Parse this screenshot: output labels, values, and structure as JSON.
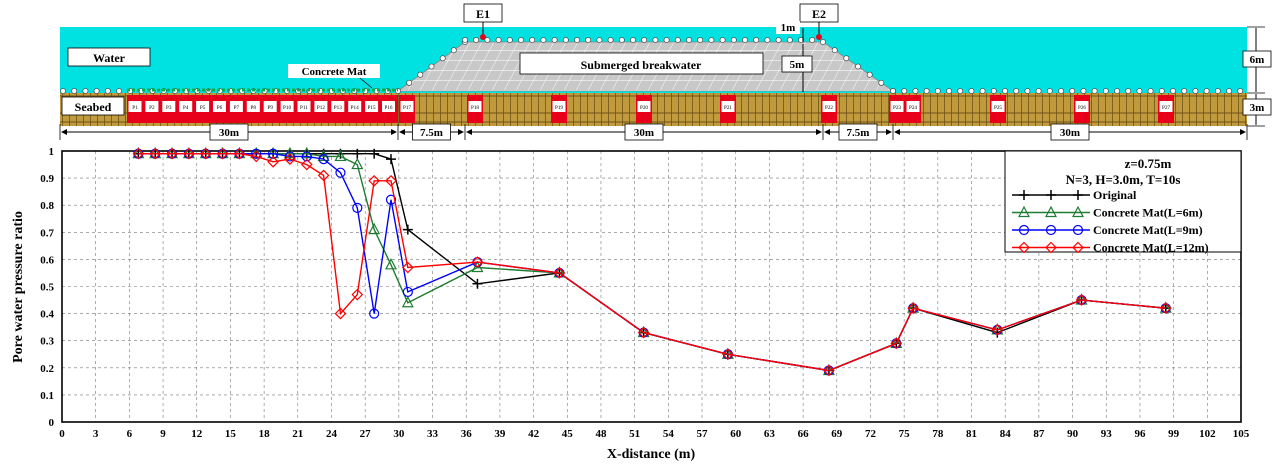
{
  "diagram": {
    "water_label": "Water",
    "concrete_mat_label": "Concrete Mat",
    "breakwater_label": "Submerged breakwater",
    "seabed_label": "Seabed",
    "e1_label": "E1",
    "e2_label": "E2",
    "dim_1m": "1m",
    "dim_5m": "5m",
    "dim_6m": "6m",
    "dim_3m": "3m",
    "segments": [
      "30m",
      "7.5m",
      "30m",
      "7.5m",
      "30m"
    ],
    "probes": [
      "P1",
      "P2",
      "P3",
      "P4",
      "P5",
      "P6",
      "P7",
      "P8",
      "P9",
      "P10",
      "P11",
      "P12",
      "P13",
      "P14",
      "P15",
      "P16",
      "P17",
      "P18",
      "P19",
      "P20",
      "P21",
      "P22",
      "P23",
      "P24",
      "P25",
      "P26",
      "P27"
    ],
    "colors": {
      "water": "#00e1e1",
      "seabed": "#c09a3c",
      "breakwater": "#c0c0c0",
      "probe": "#e8001a",
      "mat": "#00b050"
    }
  },
  "chart_data": {
    "type": "line",
    "xlabel": "X-distance (m)",
    "ylabel": "Pore water pressure ratio",
    "xlim": [
      0,
      105
    ],
    "ylim": [
      0,
      1
    ],
    "xticks": [
      0,
      3,
      6,
      9,
      12,
      15,
      18,
      21,
      24,
      27,
      30,
      33,
      36,
      39,
      42,
      45,
      48,
      51,
      54,
      57,
      60,
      63,
      66,
      69,
      72,
      75,
      78,
      81,
      84,
      87,
      90,
      93,
      96,
      99,
      102,
      105
    ],
    "yticks": [
      0,
      0.1,
      0.2,
      0.3,
      0.4,
      0.5,
      0.6,
      0.7,
      0.8,
      0.9,
      1
    ],
    "grid": true,
    "legend_position": "top-right",
    "legend_header": [
      "z=0.75m",
      "N=3, H=3.0m, T=10s"
    ],
    "series": [
      {
        "name": "Original",
        "color": "#000000",
        "marker": "plus",
        "x": [
          6.8,
          8.3,
          9.8,
          11.3,
          12.8,
          14.3,
          15.8,
          17.3,
          18.8,
          20.3,
          21.8,
          23.3,
          24.8,
          26.3,
          27.8,
          29.3,
          30.8,
          37.0,
          44.3,
          51.8,
          59.3,
          68.3,
          74.3,
          75.8,
          83.3,
          90.8,
          98.3
        ],
        "y": [
          0.99,
          0.99,
          0.99,
          0.99,
          0.99,
          0.99,
          0.99,
          0.99,
          0.99,
          0.99,
          0.99,
          0.99,
          0.99,
          0.99,
          0.99,
          0.97,
          0.71,
          0.51,
          0.55,
          0.33,
          0.25,
          0.19,
          0.29,
          0.42,
          0.33,
          0.45,
          0.42
        ]
      },
      {
        "name": "Concrete Mat(L=6m)",
        "color": "#1e7d32",
        "marker": "triangle",
        "x": [
          6.8,
          8.3,
          9.8,
          11.3,
          12.8,
          14.3,
          15.8,
          17.3,
          18.8,
          20.3,
          21.8,
          23.3,
          24.8,
          26.3,
          27.8,
          29.3,
          30.8,
          37.0,
          44.3,
          51.8,
          59.3,
          68.3,
          74.3,
          75.8,
          83.3,
          90.8,
          98.3
        ],
        "y": [
          0.99,
          0.99,
          0.99,
          0.99,
          0.99,
          0.99,
          0.99,
          0.99,
          0.99,
          0.99,
          0.99,
          0.98,
          0.98,
          0.95,
          0.71,
          0.58,
          0.44,
          0.57,
          0.55,
          0.33,
          0.25,
          0.19,
          0.29,
          0.42,
          0.34,
          0.45,
          0.42
        ]
      },
      {
        "name": "Concrete Mat(L=9m)",
        "color": "#0000ff",
        "marker": "circle",
        "x": [
          6.8,
          8.3,
          9.8,
          11.3,
          12.8,
          14.3,
          15.8,
          17.3,
          18.8,
          20.3,
          21.8,
          23.3,
          24.8,
          26.3,
          27.8,
          29.3,
          30.8,
          37.0,
          44.3,
          51.8,
          59.3,
          68.3,
          74.3,
          75.8,
          83.3,
          90.8,
          98.3
        ],
        "y": [
          0.99,
          0.99,
          0.99,
          0.99,
          0.99,
          0.99,
          0.99,
          0.99,
          0.99,
          0.98,
          0.98,
          0.97,
          0.92,
          0.79,
          0.4,
          0.82,
          0.48,
          0.59,
          0.55,
          0.33,
          0.25,
          0.19,
          0.29,
          0.42,
          0.34,
          0.45,
          0.42
        ]
      },
      {
        "name": "Concrete Mat(L=12m)",
        "color": "#ff0000",
        "marker": "diamond",
        "x": [
          6.8,
          8.3,
          9.8,
          11.3,
          12.8,
          14.3,
          15.8,
          17.3,
          18.8,
          20.3,
          21.8,
          23.3,
          24.8,
          26.3,
          27.8,
          29.3,
          30.8,
          37.0,
          44.3,
          51.8,
          59.3,
          68.3,
          74.3,
          75.8,
          83.3,
          90.8,
          98.3
        ],
        "y": [
          0.99,
          0.99,
          0.99,
          0.99,
          0.99,
          0.99,
          0.99,
          0.98,
          0.96,
          0.97,
          0.95,
          0.91,
          0.4,
          0.47,
          0.89,
          0.89,
          0.57,
          0.59,
          0.55,
          0.33,
          0.25,
          0.19,
          0.29,
          0.42,
          0.34,
          0.45,
          0.42
        ]
      }
    ]
  }
}
